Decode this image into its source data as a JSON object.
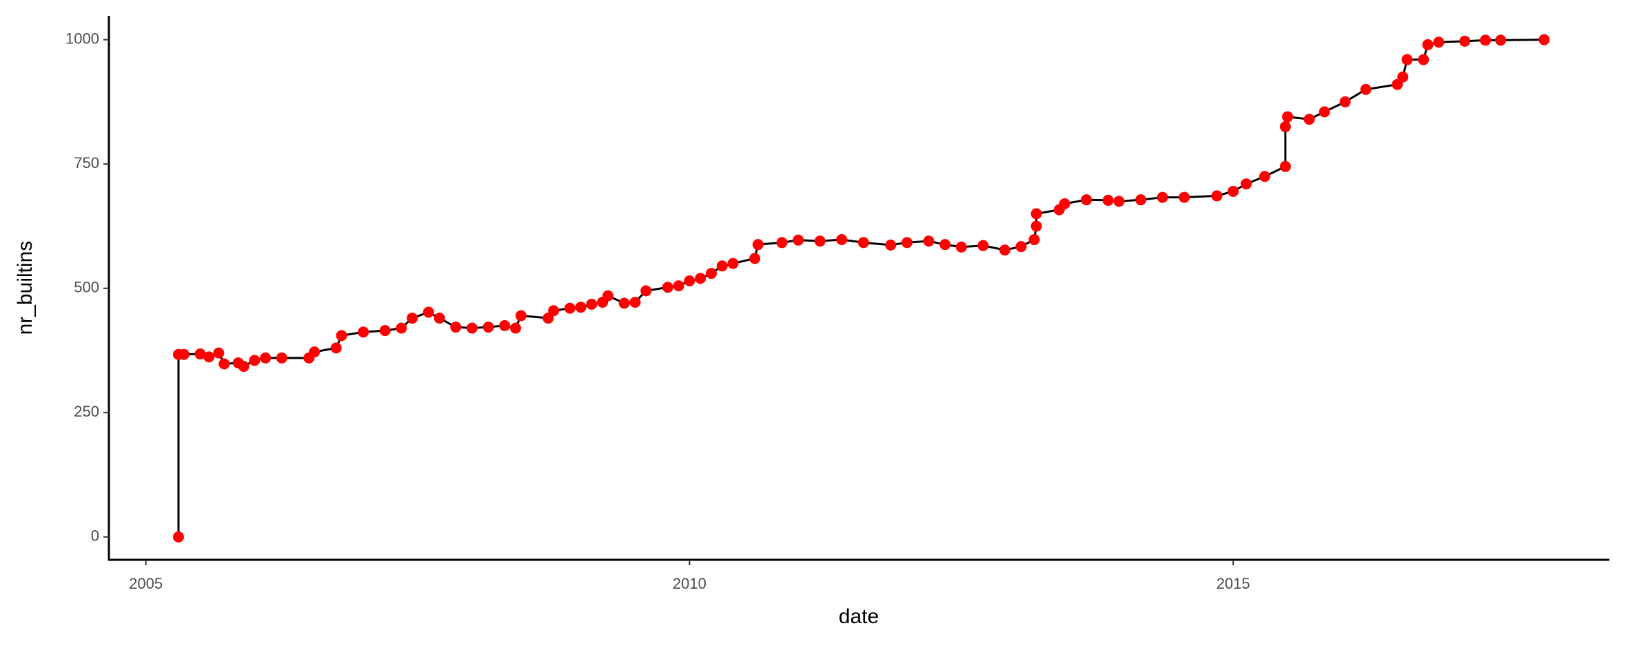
{
  "chart_data": {
    "type": "line",
    "x_label": "date",
    "y_label": "nr_builtins",
    "xlim": [
      2004.66,
      2018.46
    ],
    "xticks": [
      2005,
      2010,
      2015
    ],
    "ylim": [
      -46,
      1048
    ],
    "yticks": [
      0,
      250,
      500,
      750,
      1000
    ],
    "line_color": "#000000",
    "point_color": "#ff0000",
    "x": [
      2005.3,
      2005.3,
      2005.35,
      2005.5,
      2005.58,
      2005.67,
      2005.72,
      2005.85,
      2005.9,
      2006.0,
      2006.1,
      2006.25,
      2006.5,
      2006.55,
      2006.75,
      2006.8,
      2007.0,
      2007.2,
      2007.35,
      2007.45,
      2007.6,
      2007.7,
      2007.85,
      2008.0,
      2008.15,
      2008.3,
      2008.4,
      2008.45,
      2008.7,
      2008.75,
      2008.9,
      2009.0,
      2009.1,
      2009.2,
      2009.25,
      2009.4,
      2009.5,
      2009.6,
      2009.8,
      2009.9,
      2010.0,
      2010.1,
      2010.2,
      2010.3,
      2010.4,
      2010.6,
      2010.63,
      2010.85,
      2011.0,
      2011.2,
      2011.4,
      2011.6,
      2011.85,
      2012.0,
      2012.2,
      2012.35,
      2012.5,
      2012.7,
      2012.9,
      2013.05,
      2013.17,
      2013.19,
      2013.19,
      2013.4,
      2013.45,
      2013.65,
      2013.85,
      2013.95,
      2014.15,
      2014.35,
      2014.55,
      2014.85,
      2015.0,
      2015.12,
      2015.29,
      2015.48,
      2015.48,
      2015.5,
      2015.7,
      2015.84,
      2016.03,
      2016.22,
      2016.51,
      2016.56,
      2016.6,
      2016.75,
      2016.79,
      2016.89,
      2017.13,
      2017.32,
      2017.46,
      2017.86
    ],
    "y": [
      0,
      367,
      367,
      368,
      362,
      370,
      348,
      350,
      343,
      355,
      360,
      360,
      360,
      372,
      380,
      405,
      412,
      415,
      420,
      440,
      452,
      440,
      422,
      420,
      422,
      425,
      420,
      445,
      440,
      455,
      460,
      462,
      468,
      472,
      485,
      470,
      472,
      495,
      502,
      505,
      515,
      520,
      530,
      545,
      550,
      560,
      588,
      592,
      597,
      595,
      598,
      592,
      587,
      592,
      595,
      588,
      583,
      586,
      577,
      584,
      598,
      625,
      650,
      658,
      670,
      678,
      677,
      675,
      678,
      683,
      683,
      686,
      695,
      710,
      725,
      745,
      825,
      845,
      840,
      855,
      875,
      900,
      910,
      925,
      960,
      960,
      990,
      995,
      997,
      999,
      999,
      1000
    ]
  }
}
